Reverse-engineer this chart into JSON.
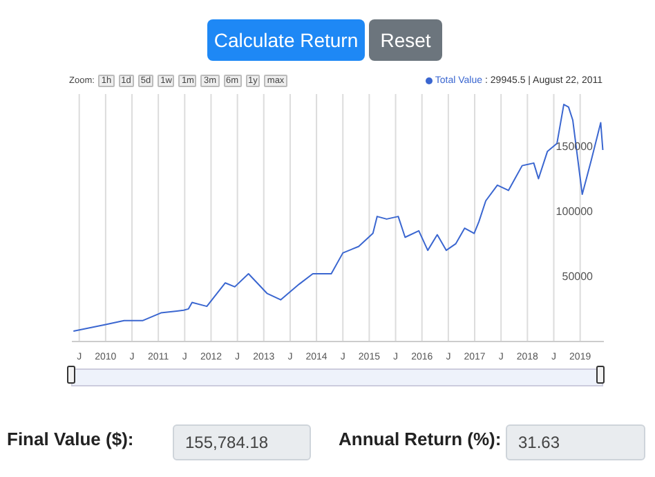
{
  "chart_data": {
    "type": "line",
    "x": [
      2009.39,
      2010.0,
      2010.35,
      2010.7,
      2011.05,
      2011.48,
      2011.57,
      2011.64,
      2011.92,
      2012.27,
      2012.45,
      2012.71,
      2013.06,
      2013.32,
      2013.67,
      2013.93,
      2014.28,
      2014.5,
      2014.8,
      2015.07,
      2015.15,
      2015.33,
      2015.55,
      2015.68,
      2015.94,
      2016.11,
      2016.29,
      2016.46,
      2016.64,
      2016.81,
      2016.99,
      2017.08,
      2017.21,
      2017.43,
      2017.64,
      2017.9,
      2018.12,
      2018.21,
      2018.38,
      2018.56,
      2018.69,
      2018.78,
      2018.86,
      2019.04,
      2019.21,
      2019.39,
      2019.43
    ],
    "series": [
      {
        "name": "Total Value",
        "color": "#3a66d0",
        "values": [
          8000,
          13000,
          16000,
          16000,
          22000,
          24000,
          25000,
          29945.5,
          27000,
          45000,
          42000,
          52000,
          37000,
          32000,
          44000,
          52000,
          52000,
          68000,
          73000,
          83000,
          96000,
          94000,
          96000,
          80000,
          85000,
          70000,
          82000,
          70000,
          75000,
          87000,
          83000,
          92000,
          108000,
          120000,
          116000,
          135000,
          137000,
          125000,
          146000,
          152000,
          182000,
          180000,
          170000,
          113000,
          139000,
          168000,
          147000
        ]
      }
    ],
    "xlim": [
      2009.36,
      2019.45
    ],
    "xticks": [
      {
        "value": 2009.5,
        "label": "J"
      },
      2010,
      {
        "value": 2010.5,
        "label": "J"
      },
      2011,
      {
        "value": 2011.5,
        "label": "J"
      },
      2012,
      {
        "value": 2012.5,
        "label": "J"
      },
      2013,
      {
        "value": 2013.5,
        "label": "J"
      },
      2014,
      {
        "value": 2014.5,
        "label": "J"
      },
      2015,
      {
        "value": 2015.5,
        "label": "J"
      },
      2016,
      {
        "value": 2016.5,
        "label": "J"
      },
      2017,
      {
        "value": 2017.5,
        "label": "J"
      },
      2018,
      {
        "value": 2018.5,
        "label": "J"
      },
      2019
    ],
    "ylim": [
      0,
      190000
    ],
    "yticks": [
      50000,
      100000,
      150000
    ],
    "grid": "x",
    "legend": "top right",
    "marker": "none",
    "line_style": "solid",
    "annotations": [
      ": 29945.5 | August 22, 2011",
      "Calculate Return",
      "Reset",
      "Zoom:",
      "1h",
      "1d",
      "5d",
      "1w",
      "1m",
      "3m",
      "6m",
      "1y",
      "max",
      "Final Value ($):",
      "155,784.18",
      "Annual Return (%):",
      "31.63"
    ]
  }
}
